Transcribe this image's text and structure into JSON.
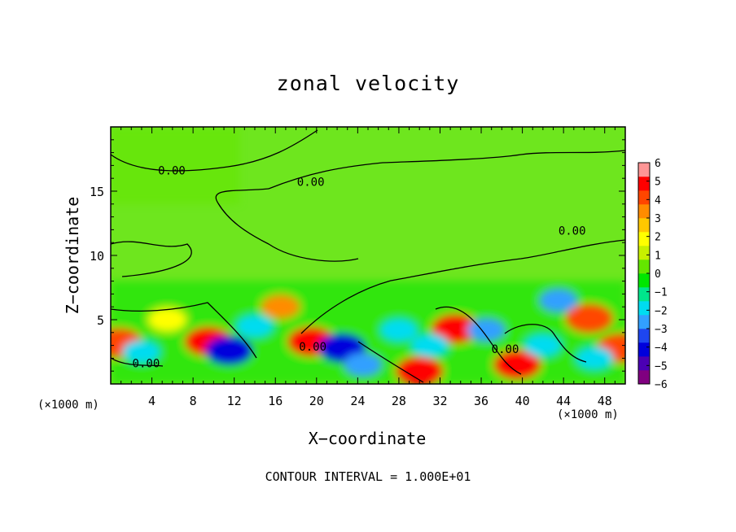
{
  "chart_data": {
    "type": "heatmap",
    "title": "zonal velocity",
    "xlabel": "X−coordinate",
    "ylabel": "Z−coordinate",
    "x_unit_left": "(×1000 m)",
    "x_unit_right": "(×1000 m)",
    "footer": "CONTOUR INTERVAL = 1.000E+01",
    "xlim": [
      0,
      50
    ],
    "ylim": [
      0,
      20
    ],
    "x_ticks": [
      "4",
      "8",
      "12",
      "16",
      "20",
      "24",
      "28",
      "32",
      "36",
      "40",
      "44",
      "48"
    ],
    "x_tick_values": [
      4,
      8,
      12,
      16,
      20,
      24,
      28,
      32,
      36,
      40,
      44,
      48
    ],
    "y_ticks": [
      "5",
      "10",
      "15"
    ],
    "y_tick_values": [
      5,
      10,
      15
    ],
    "colorbar": {
      "min": -6,
      "max": 6,
      "tick_labels": [
        "6",
        "5",
        "4",
        "3",
        "2",
        "1",
        "0",
        "−1",
        "−2",
        "−3",
        "−4",
        "−5",
        "−6"
      ],
      "tick_values": [
        6,
        5,
        4,
        3,
        2,
        1,
        0,
        -1,
        -2,
        -3,
        -4,
        -5,
        -6
      ],
      "colors": [
        "#800080",
        "#4b00b4",
        "#0000dc",
        "#1e46f0",
        "#32a0ff",
        "#00dcf0",
        "#00e68c",
        "#00e600",
        "#64e600",
        "#c8f000",
        "#ffff00",
        "#ffc800",
        "#ff8c00",
        "#ff4600",
        "#ff0000",
        "#ff9696"
      ]
    },
    "contour_labels": [
      {
        "text": "0.00",
        "x": 4.6,
        "z": 16.3
      },
      {
        "text": "0.00",
        "x": 18.1,
        "z": 15.4
      },
      {
        "text": "0.00",
        "x": 43.5,
        "z": 11.6
      },
      {
        "text": "0.00",
        "x": 18.3,
        "z": 2.6
      },
      {
        "text": "0.00",
        "x": 37.0,
        "z": 2.4
      },
      {
        "text": "0.00",
        "x": 2.1,
        "z": 1.3
      }
    ],
    "features": [
      {
        "x": 0.8,
        "z": 3.2,
        "u": 4
      },
      {
        "x": 9.5,
        "z": 3.3,
        "u": 5
      },
      {
        "x": 11.5,
        "z": 2.6,
        "u": -4
      },
      {
        "x": 16.5,
        "z": 6.0,
        "u": 3
      },
      {
        "x": 19.5,
        "z": 3.3,
        "u": 5
      },
      {
        "x": 22.5,
        "z": 2.8,
        "u": -4
      },
      {
        "x": 24.5,
        "z": 1.5,
        "u": -3
      },
      {
        "x": 33.5,
        "z": 4.3,
        "u": 5
      },
      {
        "x": 30.0,
        "z": 1.0,
        "u": 5
      },
      {
        "x": 43.5,
        "z": 6.5,
        "u": -3
      },
      {
        "x": 46.5,
        "z": 5.1,
        "u": 4
      },
      {
        "x": 39.5,
        "z": 1.5,
        "u": 5
      },
      {
        "x": 49.5,
        "z": 2.8,
        "u": 4
      },
      {
        "x": 28.0,
        "z": 4.2,
        "u": -2
      },
      {
        "x": 36.5,
        "z": 4.2,
        "u": -3
      },
      {
        "x": 5.5,
        "z": 5.0,
        "u": 2
      },
      {
        "x": 14.0,
        "z": 4.5,
        "u": -2
      },
      {
        "x": 31.0,
        "z": 3.0,
        "u": -2
      },
      {
        "x": 42.0,
        "z": 3.0,
        "u": -2
      },
      {
        "x": 47.0,
        "z": 2.0,
        "u": -2
      },
      {
        "x": 3.0,
        "z": 2.5,
        "u": -2
      }
    ]
  }
}
